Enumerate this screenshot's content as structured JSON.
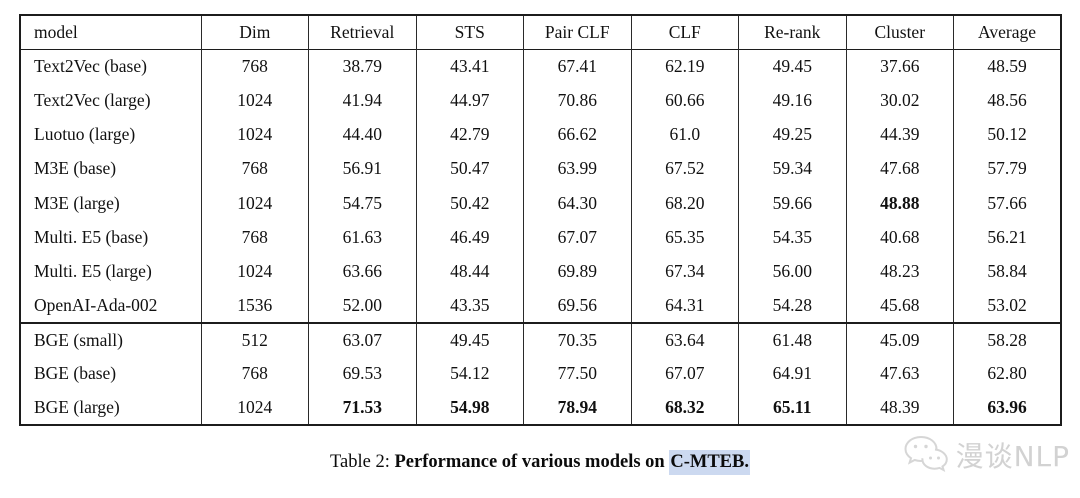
{
  "table": {
    "columns": [
      "model",
      "Dim",
      "Retrieval",
      "STS",
      "Pair CLF",
      "CLF",
      "Re-rank",
      "Cluster",
      "Average"
    ],
    "groups": [
      {
        "rows": [
          {
            "model": "Text2Vec (base)",
            "dim": "768",
            "values": [
              "38.79",
              "43.41",
              "67.41",
              "62.19",
              "49.45",
              "37.66",
              "48.59"
            ],
            "bold": []
          },
          {
            "model": "Text2Vec (large)",
            "dim": "1024",
            "values": [
              "41.94",
              "44.97",
              "70.86",
              "60.66",
              "49.16",
              "30.02",
              "48.56"
            ],
            "bold": []
          },
          {
            "model": "Luotuo (large)",
            "dim": "1024",
            "values": [
              "44.40",
              "42.79",
              "66.62",
              "61.0",
              "49.25",
              "44.39",
              "50.12"
            ],
            "bold": []
          },
          {
            "model": "M3E (base)",
            "dim": "768",
            "values": [
              "56.91",
              "50.47",
              "63.99",
              "67.52",
              "59.34",
              "47.68",
              "57.79"
            ],
            "bold": []
          },
          {
            "model": "M3E (large)",
            "dim": "1024",
            "values": [
              "54.75",
              "50.42",
              "64.30",
              "68.20",
              "59.66",
              "48.88",
              "57.66"
            ],
            "bold": [
              5
            ]
          },
          {
            "model": "Multi. E5 (base)",
            "dim": "768",
            "values": [
              "61.63",
              "46.49",
              "67.07",
              "65.35",
              "54.35",
              "40.68",
              "56.21"
            ],
            "bold": []
          },
          {
            "model": "Multi. E5 (large)",
            "dim": "1024",
            "values": [
              "63.66",
              "48.44",
              "69.89",
              "67.34",
              "56.00",
              "48.23",
              "58.84"
            ],
            "bold": []
          },
          {
            "model": "OpenAI-Ada-002",
            "dim": "1536",
            "values": [
              "52.00",
              "43.35",
              "69.56",
              "64.31",
              "54.28",
              "45.68",
              "53.02"
            ],
            "bold": []
          }
        ]
      },
      {
        "rows": [
          {
            "model": "BGE (small)",
            "dim": "512",
            "values": [
              "63.07",
              "49.45",
              "70.35",
              "63.64",
              "61.48",
              "45.09",
              "58.28"
            ],
            "bold": []
          },
          {
            "model": "BGE (base)",
            "dim": "768",
            "values": [
              "69.53",
              "54.12",
              "77.50",
              "67.07",
              "64.91",
              "47.63",
              "62.80"
            ],
            "bold": []
          },
          {
            "model": "BGE (large)",
            "dim": "1024",
            "values": [
              "71.53",
              "54.98",
              "78.94",
              "68.32",
              "65.11",
              "48.39",
              "63.96"
            ],
            "bold": [
              0,
              1,
              2,
              3,
              4,
              6
            ]
          }
        ]
      }
    ]
  },
  "caption": {
    "label": "Table 2: ",
    "bold_text": "Performance of various models on ",
    "highlight": "C-MTEB."
  },
  "watermark": {
    "text": "漫谈NLP"
  },
  "colors": {
    "caption_highlight": "#ccd9f0",
    "table_border": "#1c1c1c",
    "watermark_gray": "#d2d2d2"
  }
}
